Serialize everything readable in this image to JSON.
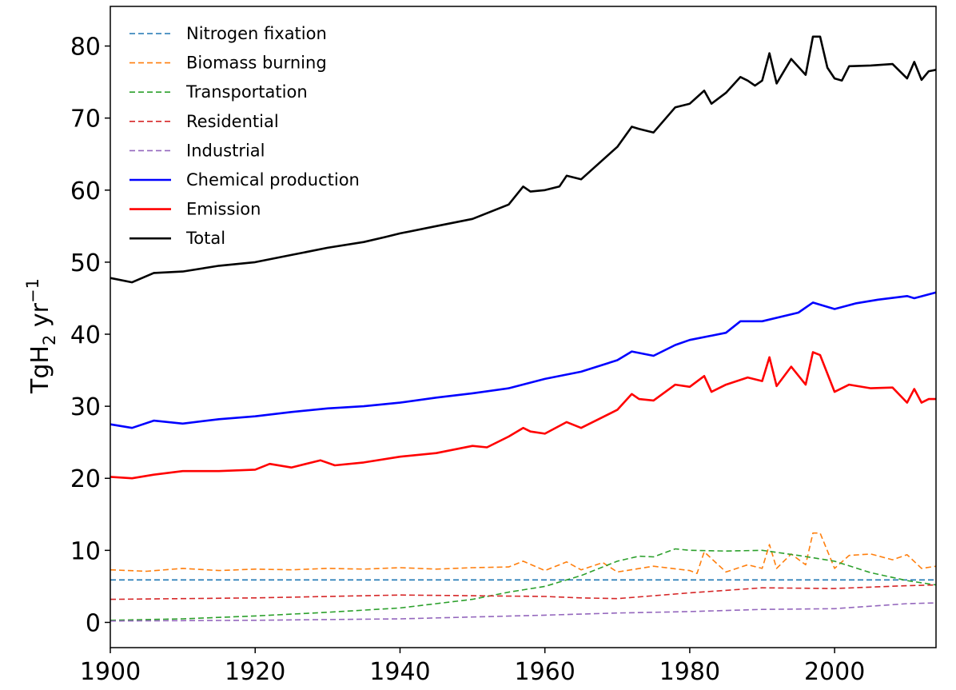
{
  "chart_data": {
    "type": "line",
    "title": "",
    "xlabel": "",
    "ylabel": "TgH",
    "ylabel_sub": "2",
    "ylabel_unit": " yr",
    "ylabel_sup": "−1",
    "xlim": [
      1900,
      2014
    ],
    "ylim": [
      -3.5,
      85.5
    ],
    "xticks": [
      1900,
      1920,
      1940,
      1960,
      1980,
      2000
    ],
    "yticks": [
      0,
      10,
      20,
      30,
      40,
      50,
      60,
      70,
      80
    ],
    "grid": false,
    "legend_position": "top-left",
    "series": [
      {
        "name": "Nitrogen fixation",
        "color": "#1f77b4",
        "style": "dashed",
        "x": [
          1900,
          2014
        ],
        "y": [
          5.9,
          5.9
        ]
      },
      {
        "name": "Biomass burning",
        "color": "#ff7f0e",
        "style": "dashed",
        "x": [
          1900,
          1905,
          1910,
          1915,
          1920,
          1925,
          1930,
          1935,
          1940,
          1945,
          1950,
          1955,
          1957,
          1960,
          1963,
          1965,
          1968,
          1970,
          1975,
          1980,
          1981,
          1982,
          1985,
          1988,
          1990,
          1991,
          1992,
          1994,
          1996,
          1997,
          1998,
          2000,
          2002,
          2005,
          2008,
          2010,
          2012,
          2014
        ],
        "y": [
          7.3,
          7.1,
          7.5,
          7.2,
          7.4,
          7.3,
          7.5,
          7.4,
          7.6,
          7.4,
          7.6,
          7.7,
          8.5,
          7.2,
          8.4,
          7.3,
          8.3,
          7.0,
          7.8,
          7.2,
          6.8,
          9.8,
          7.0,
          8.0,
          7.5,
          10.8,
          7.5,
          9.5,
          8.0,
          12.4,
          12.4,
          7.5,
          9.3,
          9.5,
          8.7,
          9.4,
          7.5,
          7.8
        ]
      },
      {
        "name": "Transportation",
        "color": "#2ca02c",
        "style": "dashed",
        "x": [
          1900,
          1910,
          1920,
          1930,
          1940,
          1945,
          1950,
          1955,
          1960,
          1965,
          1970,
          1973,
          1975,
          1978,
          1980,
          1985,
          1990,
          1995,
          2000,
          2005,
          2010,
          2014
        ],
        "y": [
          0.3,
          0.5,
          0.9,
          1.4,
          2.0,
          2.6,
          3.2,
          4.2,
          5.0,
          6.5,
          8.5,
          9.2,
          9.1,
          10.2,
          10.0,
          9.9,
          10.0,
          9.3,
          8.5,
          6.9,
          5.8,
          5.2
        ]
      },
      {
        "name": "Residential",
        "color": "#d62728",
        "style": "dashed",
        "x": [
          1900,
          1910,
          1920,
          1930,
          1940,
          1950,
          1960,
          1965,
          1970,
          1980,
          1990,
          2000,
          2010,
          2014
        ],
        "y": [
          3.2,
          3.3,
          3.4,
          3.6,
          3.8,
          3.7,
          3.6,
          3.4,
          3.3,
          4.1,
          4.8,
          4.7,
          5.1,
          5.2
        ]
      },
      {
        "name": "Industrial",
        "color": "#9467bd",
        "style": "dashed",
        "x": [
          1900,
          1920,
          1940,
          1960,
          1970,
          1980,
          1990,
          2000,
          2010,
          2014
        ],
        "y": [
          0.2,
          0.3,
          0.5,
          1.0,
          1.3,
          1.5,
          1.8,
          1.9,
          2.6,
          2.7
        ]
      },
      {
        "name": "Chemical production",
        "color": "#0000ff",
        "style": "solid",
        "x": [
          1900,
          1903,
          1906,
          1910,
          1915,
          1920,
          1925,
          1930,
          1935,
          1940,
          1945,
          1950,
          1955,
          1960,
          1965,
          1970,
          1972,
          1975,
          1978,
          1980,
          1985,
          1987,
          1990,
          1995,
          1997,
          2000,
          2003,
          2006,
          2010,
          2011,
          2014
        ],
        "y": [
          27.5,
          27.0,
          28.0,
          27.6,
          28.2,
          28.6,
          29.2,
          29.7,
          30.0,
          30.5,
          31.2,
          31.8,
          32.5,
          33.8,
          34.8,
          36.4,
          37.6,
          37.0,
          38.5,
          39.2,
          40.2,
          41.8,
          41.8,
          43.0,
          44.4,
          43.5,
          44.3,
          44.8,
          45.3,
          45.0,
          45.8
        ]
      },
      {
        "name": "Emission",
        "color": "#ff0000",
        "style": "solid",
        "x": [
          1900,
          1903,
          1906,
          1910,
          1915,
          1920,
          1922,
          1925,
          1929,
          1931,
          1935,
          1940,
          1945,
          1950,
          1952,
          1955,
          1957,
          1958,
          1960,
          1963,
          1965,
          1970,
          1972,
          1973,
          1975,
          1978,
          1980,
          1982,
          1983,
          1985,
          1988,
          1990,
          1991,
          1992,
          1994,
          1996,
          1997,
          1998,
          2000,
          2002,
          2005,
          2008,
          2010,
          2011,
          2012,
          2013,
          2014
        ],
        "y": [
          20.2,
          20.0,
          20.5,
          21.0,
          21.0,
          21.2,
          22.0,
          21.5,
          22.5,
          21.8,
          22.2,
          23.0,
          23.5,
          24.5,
          24.3,
          25.8,
          27.0,
          26.5,
          26.2,
          27.8,
          27.0,
          29.5,
          31.7,
          31.0,
          30.8,
          33.0,
          32.7,
          34.2,
          32.0,
          33.0,
          34.0,
          33.5,
          36.8,
          32.8,
          35.5,
          33.0,
          37.5,
          37.1,
          32.0,
          33.0,
          32.5,
          32.6,
          30.5,
          32.4,
          30.5,
          31.0,
          31.0
        ]
      },
      {
        "name": "Total",
        "color": "#000000",
        "style": "solid",
        "x": [
          1900,
          1903,
          1906,
          1910,
          1915,
          1920,
          1925,
          1930,
          1935,
          1938,
          1940,
          1945,
          1950,
          1955,
          1957,
          1958,
          1960,
          1962,
          1963,
          1965,
          1970,
          1972,
          1973,
          1975,
          1978,
          1980,
          1982,
          1983,
          1985,
          1987,
          1988,
          1989,
          1990,
          1991,
          1992,
          1994,
          1996,
          1997,
          1998,
          1999,
          2000,
          2001,
          2002,
          2005,
          2008,
          2010,
          2011,
          2012,
          2013,
          2014
        ],
        "y": [
          47.8,
          47.2,
          48.5,
          48.7,
          49.5,
          50.0,
          51.0,
          52.0,
          52.8,
          53.5,
          54.0,
          55.0,
          56.0,
          58.0,
          60.5,
          59.8,
          60.0,
          60.5,
          62.0,
          61.5,
          66.0,
          68.8,
          68.5,
          68.0,
          71.5,
          72.0,
          73.8,
          72.0,
          73.5,
          75.7,
          75.2,
          74.5,
          75.2,
          79.0,
          74.8,
          78.2,
          76.0,
          81.3,
          81.3,
          77.0,
          75.5,
          75.2,
          77.2,
          77.3,
          77.5,
          75.5,
          77.8,
          75.3,
          76.5,
          76.7
        ]
      }
    ]
  }
}
